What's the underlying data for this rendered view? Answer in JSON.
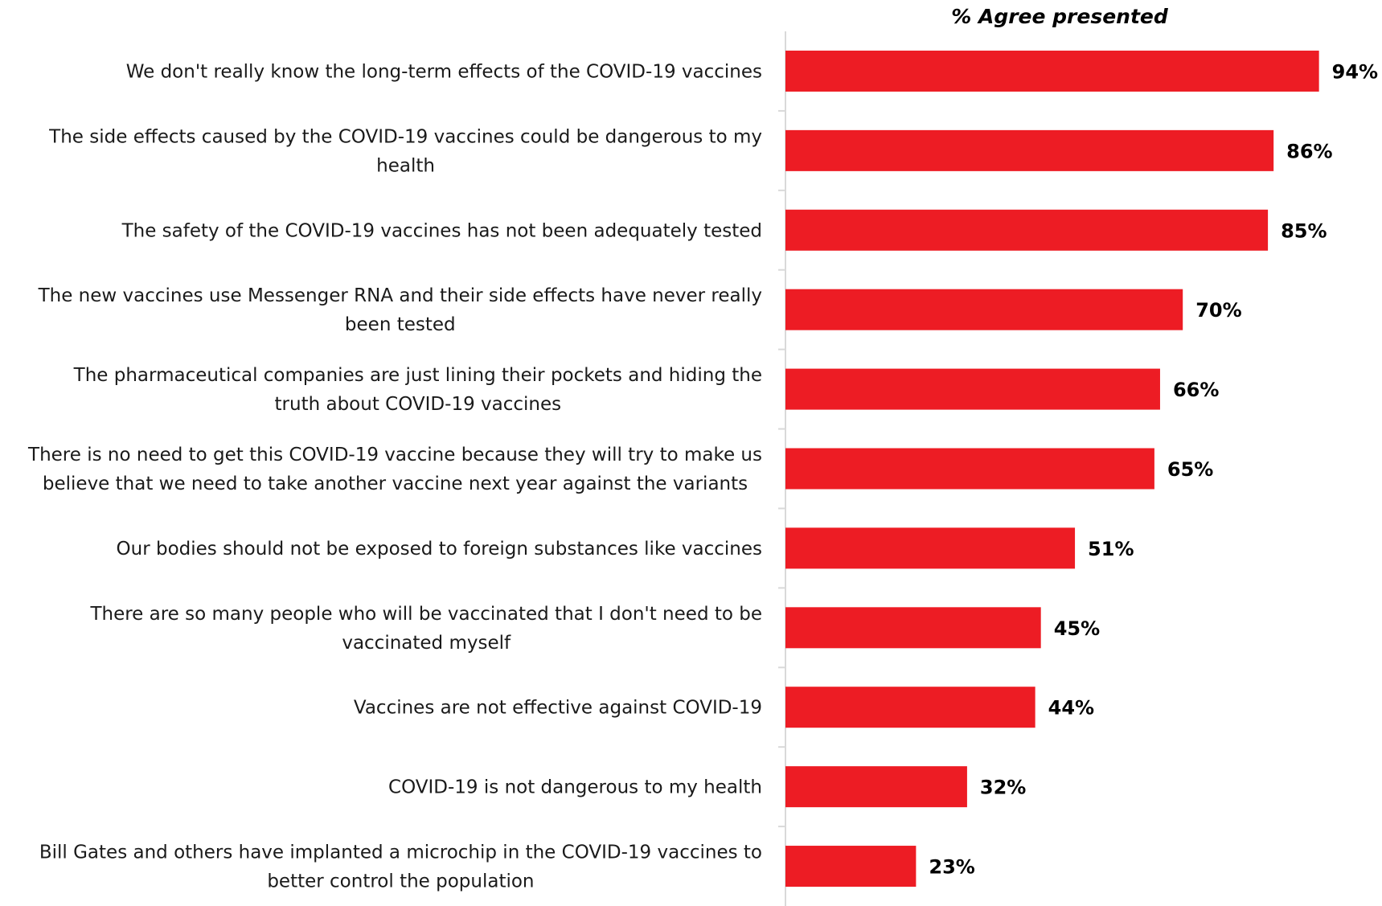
{
  "chart_data": {
    "type": "bar",
    "orientation": "horizontal",
    "title": "% Agree presented",
    "xlim": [
      0,
      100
    ],
    "bar_color": "#ED1C24",
    "axis_color": "#D9D9D9",
    "grid": false,
    "categories": [
      [
        "We don't really know the long-term effects of the COVID-19 vaccines"
      ],
      [
        "The side effects caused by the COVID-19 vaccines could be dangerous to my",
        "health"
      ],
      [
        "The safety of the COVID-19 vaccines has not been adequately tested"
      ],
      [
        "The new vaccines use Messenger RNA and their side effects have never really",
        "been tested"
      ],
      [
        "The pharmaceutical companies are just lining their pockets and hiding the",
        "truth about COVID-19 vaccines"
      ],
      [
        "There is no need to get this COVID-19 vaccine because they will try to make us",
        "believe that we need to take another vaccine next year against the variants"
      ],
      [
        "Our bodies should not be exposed to foreign substances like vaccines"
      ],
      [
        "There are so many people who will be vaccinated that I don't need to be",
        "vaccinated myself"
      ],
      [
        "Vaccines are not effective against COVID-19"
      ],
      [
        "COVID-19 is not dangerous to my health"
      ],
      [
        "Bill Gates and others have implanted a microchip in the COVID-19 vaccines to",
        "better control the population"
      ]
    ],
    "values": [
      94,
      86,
      85,
      70,
      66,
      65,
      51,
      45,
      44,
      32,
      23
    ],
    "value_labels": [
      "94%",
      "86%",
      "85%",
      "70%",
      "66%",
      "65%",
      "51%",
      "45%",
      "44%",
      "32%",
      "23%"
    ]
  }
}
